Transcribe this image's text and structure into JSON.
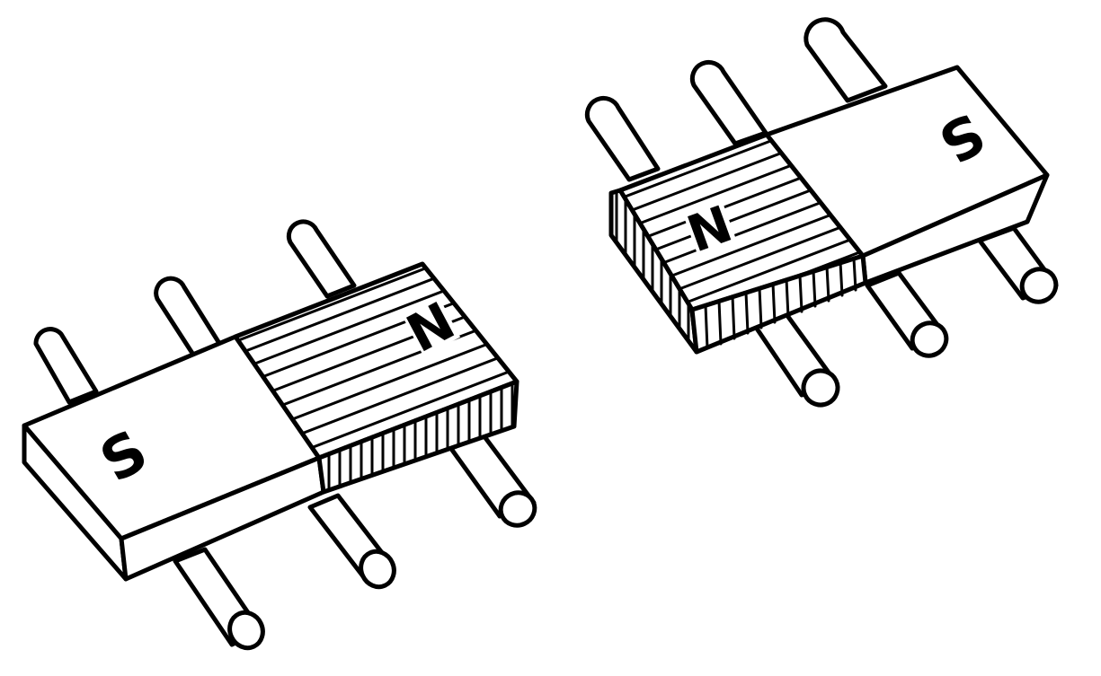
{
  "magnets": [
    {
      "south_label": "S",
      "north_label": "N"
    },
    {
      "south_label": "S",
      "north_label": "N"
    }
  ],
  "colors": {
    "ink": "#000000",
    "paper": "#ffffff"
  }
}
